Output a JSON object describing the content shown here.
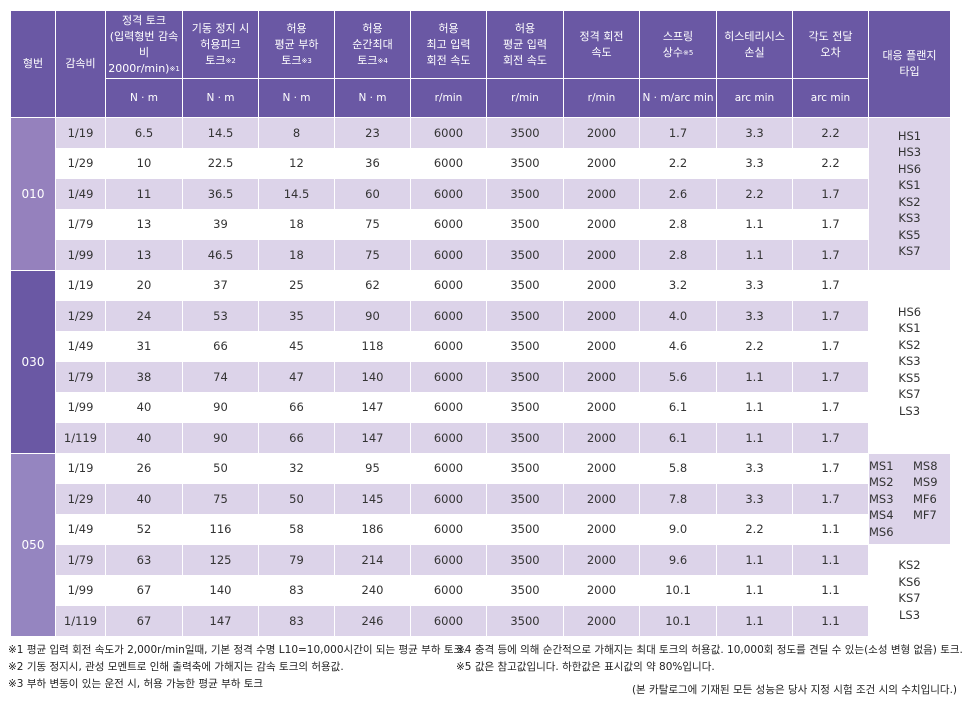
{
  "header": {
    "model": "형번",
    "ratio": "감속비",
    "columns": [
      {
        "title": [
          "정격 토크",
          "(입력형번 감속비",
          "2000r/min)"
        ],
        "sup": "※1",
        "unit": "N · m"
      },
      {
        "title": [
          "기동 정지 시",
          "허용피크",
          "토크"
        ],
        "sup": "※2",
        "unit": "N · m"
      },
      {
        "title": [
          "허용",
          "평균 부하",
          "토크"
        ],
        "sup": "※3",
        "unit": "N · m"
      },
      {
        "title": [
          "허용",
          "순간최대",
          "토크"
        ],
        "sup": "※4",
        "unit": "N · m"
      },
      {
        "title": [
          "허용",
          "최고 입력",
          "회전 속도"
        ],
        "sup": "",
        "unit": "r/min"
      },
      {
        "title": [
          "허용",
          "평균 입력",
          "회전 속도"
        ],
        "sup": "",
        "unit": "r/min"
      },
      {
        "title": [
          "정격 회전",
          "속도"
        ],
        "sup": "",
        "unit": "r/min"
      },
      {
        "title": [
          "스프링",
          "상수"
        ],
        "sup": "※5",
        "unit": "N · m/arc min"
      },
      {
        "title": [
          "히스테리시스",
          "손실"
        ],
        "sup": "",
        "unit": "arc min"
      },
      {
        "title": [
          "각도 전달",
          "오차"
        ],
        "sup": "",
        "unit": "arc min"
      }
    ],
    "flange": [
      "대응 플랜지",
      "타입"
    ]
  },
  "colors": {
    "header": "#6a58a4",
    "stripe": "#dcd3e9",
    "type_010": "#9581bd",
    "type_030": "#6a58a4",
    "type_050": "#9585c0"
  },
  "groups": [
    {
      "model": "010",
      "rows": [
        [
          "1/19",
          "6.5",
          "14.5",
          "8",
          "23",
          "6000",
          "3500",
          "2000",
          "1.7",
          "3.3",
          "2.2"
        ],
        [
          "1/29",
          "10",
          "22.5",
          "12",
          "36",
          "6000",
          "3500",
          "2000",
          "2.2",
          "3.3",
          "2.2"
        ],
        [
          "1/49",
          "11",
          "36.5",
          "14.5",
          "60",
          "6000",
          "3500",
          "2000",
          "2.6",
          "2.2",
          "1.7"
        ],
        [
          "1/79",
          "13",
          "39",
          "18",
          "75",
          "6000",
          "3500",
          "2000",
          "2.8",
          "1.1",
          "1.7"
        ],
        [
          "1/99",
          "13",
          "46.5",
          "18",
          "75",
          "6000",
          "3500",
          "2000",
          "2.8",
          "1.1",
          "1.7"
        ]
      ],
      "flanges": [
        {
          "span": 5,
          "lav": true,
          "items": [
            "HS1",
            "HS3",
            "HS6",
            "KS1",
            "KS2",
            "KS3",
            "KS5",
            "KS7"
          ]
        }
      ]
    },
    {
      "model": "030",
      "rows": [
        [
          "1/19",
          "20",
          "37",
          "25",
          "62",
          "6000",
          "3500",
          "2000",
          "3.2",
          "3.3",
          "1.7"
        ],
        [
          "1/29",
          "24",
          "53",
          "35",
          "90",
          "6000",
          "3500",
          "2000",
          "4.0",
          "3.3",
          "1.7"
        ],
        [
          "1/49",
          "31",
          "66",
          "45",
          "118",
          "6000",
          "3500",
          "2000",
          "4.6",
          "2.2",
          "1.7"
        ],
        [
          "1/79",
          "38",
          "74",
          "47",
          "140",
          "6000",
          "3500",
          "2000",
          "5.6",
          "1.1",
          "1.7"
        ],
        [
          "1/99",
          "40",
          "90",
          "66",
          "147",
          "6000",
          "3500",
          "2000",
          "6.1",
          "1.1",
          "1.7"
        ],
        [
          "1/119",
          "40",
          "90",
          "66",
          "147",
          "6000",
          "3500",
          "2000",
          "6.1",
          "1.1",
          "1.7"
        ]
      ],
      "flanges": [
        {
          "span": 6,
          "lav": false,
          "items": [
            "HS6",
            "KS1",
            "KS2",
            "KS3",
            "KS5",
            "KS7",
            "LS3"
          ]
        }
      ]
    },
    {
      "model": "050",
      "rows": [
        [
          "1/19",
          "26",
          "50",
          "32",
          "95",
          "6000",
          "3500",
          "2000",
          "5.8",
          "3.3",
          "1.7"
        ],
        [
          "1/29",
          "40",
          "75",
          "50",
          "145",
          "6000",
          "3500",
          "2000",
          "7.8",
          "3.3",
          "1.7"
        ],
        [
          "1/49",
          "52",
          "116",
          "58",
          "186",
          "6000",
          "3500",
          "2000",
          "9.0",
          "2.2",
          "1.1"
        ],
        [
          "1/79",
          "63",
          "125",
          "79",
          "214",
          "6000",
          "3500",
          "2000",
          "9.6",
          "1.1",
          "1.1"
        ],
        [
          "1/99",
          "67",
          "140",
          "83",
          "240",
          "6000",
          "3500",
          "2000",
          "10.1",
          "1.1",
          "1.1"
        ],
        [
          "1/119",
          "67",
          "147",
          "83",
          "246",
          "6000",
          "3500",
          "2000",
          "10.1",
          "1.1",
          "1.1"
        ]
      ],
      "flanges": [
        {
          "span": 3,
          "lav": true,
          "grid": true,
          "items": [
            "MS1",
            "MS8",
            "MS2",
            "MS9",
            "MS3",
            "MF6",
            "MS4",
            "MF7",
            "MS6"
          ]
        },
        {
          "span": 3,
          "lav": false,
          "items": [
            "KS2",
            "KS6",
            "KS7",
            "LS3"
          ]
        }
      ]
    }
  ],
  "notes": {
    "n1": "※1 평균 입력 회전 속도가 2,000r/min일때, 기본 정격 수명 L10=10,000시간이 되는 평균 부하 토크.",
    "n2": "※2 기동 정지시, 관성 모멘트로 인해 출력축에 가해지는 감속 토크의 허용값.",
    "n3": "※3 부하 변동이 있는 운전 시, 허용 가능한 평균 부하 토크",
    "n4": "※4 충격 등에 의해 순간적으로 가해지는 최대 토크의 허용값. 10,000회 정도를 견딜 수 있는(소성 변형 없음) 토크.",
    "n5": "※5 값은 참고값입니다. 하한값은 표시값의 약 80%입니다.",
    "footer": "(본 카탈로그에 기재된 모든 성능은 당사 지정 시험 조건 시의 수치입니다.)"
  }
}
